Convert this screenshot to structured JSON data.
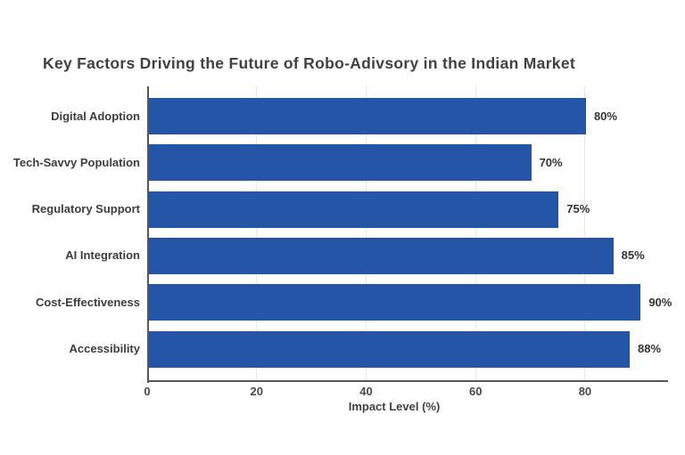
{
  "title": "Key Factors Driving the Future of Robo-Adivsory in the Indian Market",
  "chart_data": {
    "type": "bar",
    "orientation": "horizontal",
    "title": "Key Factors Driving the Future of Robo-Adivsory in the Indian Market",
    "categories": [
      "Digital Adoption",
      "Tech-Savvy Population",
      "Regulatory Support",
      "AI Integration",
      "Cost-Effectiveness",
      "Accessibility"
    ],
    "values": [
      80,
      70,
      75,
      85,
      90,
      88
    ],
    "value_labels": [
      "80%",
      "70%",
      "75%",
      "85%",
      "90%",
      "88%"
    ],
    "xlabel": "Impact Level (%)",
    "ylabel": "",
    "xlim": [
      0,
      95
    ],
    "xticks": [
      0,
      20,
      40,
      60,
      80
    ],
    "grid": "vertical-light",
    "legend": "none",
    "bar_color": "#2455a7",
    "gridline_color": "#e8e8ea",
    "axis_color": "#58585c",
    "background": "#ffffff"
  }
}
